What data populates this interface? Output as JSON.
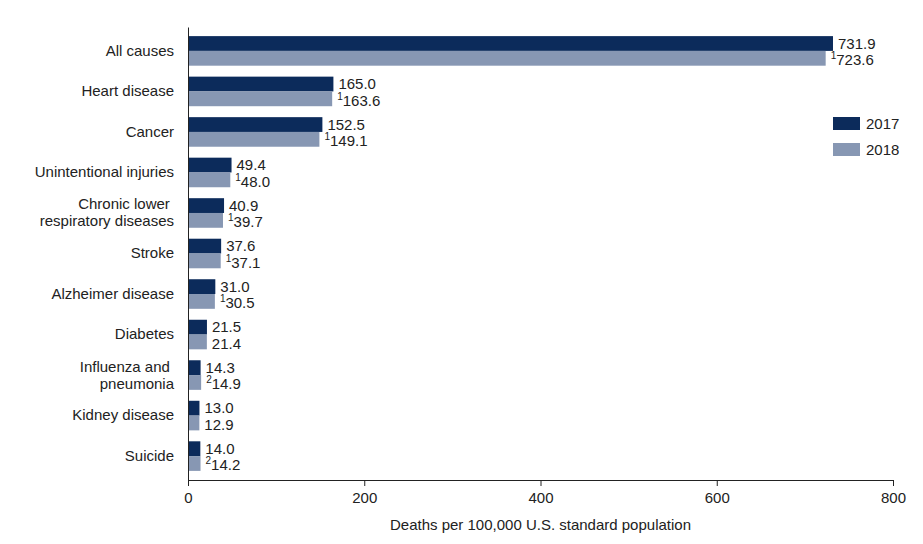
{
  "chart_data": {
    "type": "bar",
    "orientation": "horizontal",
    "x_label": "Deaths per 100,000 U.S. standard population",
    "categories": [
      "All causes",
      "Heart disease",
      "Cancer",
      "Unintentional injuries",
      "Chronic lower respiratory diseases",
      "Stroke",
      "Alzheimer disease",
      "Diabetes",
      "Influenza and pneumonia",
      "Kidney disease",
      "Suicide"
    ],
    "series": [
      {
        "name": "2017",
        "color": "#0c2b5b",
        "values": [
          731.9,
          165.0,
          152.5,
          49.4,
          40.9,
          37.6,
          31.0,
          21.5,
          14.3,
          13.0,
          14.0
        ],
        "value_labels": [
          "731.9",
          "165.0",
          "152.5",
          "49.4",
          "40.9",
          "37.6",
          "31.0",
          "21.5",
          "14.3",
          "13.0",
          "14.0"
        ]
      },
      {
        "name": "2018",
        "color": "#8797b3",
        "values": [
          723.6,
          163.6,
          149.1,
          48.0,
          39.7,
          37.1,
          30.5,
          21.4,
          14.9,
          12.9,
          14.2
        ],
        "value_labels": [
          "723.6",
          "163.6",
          "149.1",
          "48.0",
          "39.7",
          "37.1",
          "30.5",
          "21.4",
          "14.9",
          "12.9",
          "14.2"
        ],
        "footnotes": [
          1,
          1,
          1,
          1,
          1,
          1,
          1,
          null,
          2,
          null,
          2
        ]
      }
    ],
    "xlim": [
      0,
      800
    ],
    "xticks": [
      0,
      200,
      400,
      600,
      800
    ],
    "grid": false,
    "legend": "right",
    "data_labels": true
  }
}
